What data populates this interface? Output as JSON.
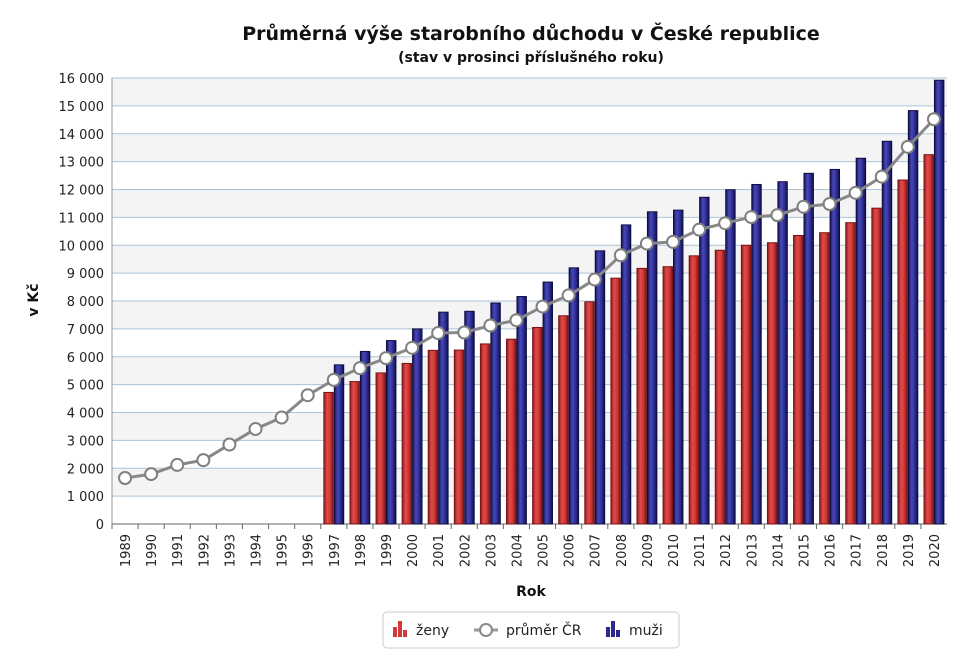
{
  "chart_data": {
    "type": "bar",
    "title": "Průměrná výše starobního důchodu v České republice",
    "subtitle": "(stav v prosinci příslušného roku)",
    "xlabel": "Rok",
    "ylabel": "v Kč",
    "ylim": [
      0,
      16000
    ],
    "yticks": [
      "0",
      "1 000",
      "2 000",
      "3 000",
      "4 000",
      "5 000",
      "6 000",
      "7 000",
      "8 000",
      "9 000",
      "10 000",
      "11 000",
      "12 000",
      "13 000",
      "14 000",
      "15 000",
      "16 000"
    ],
    "grid": true,
    "legend_placement": "bottom-center",
    "categories": [
      "1989",
      "1990",
      "1991",
      "1992",
      "1993",
      "1994",
      "1995",
      "1996",
      "1997",
      "1998",
      "1999",
      "2000",
      "2001",
      "2002",
      "2003",
      "2004",
      "2005",
      "2006",
      "2007",
      "2008",
      "2009",
      "2010",
      "2011",
      "2012",
      "2013",
      "2014",
      "2015",
      "2016",
      "2017",
      "2018",
      "2019",
      "2020"
    ],
    "series": [
      {
        "name": "ženy",
        "kind": "bar",
        "color": "#d23a3a",
        "values": [
          null,
          null,
          null,
          null,
          null,
          null,
          null,
          null,
          4720,
          5110,
          5420,
          5760,
          6230,
          6240,
          6460,
          6630,
          7050,
          7470,
          7970,
          8820,
          9170,
          9230,
          9620,
          9820,
          10000,
          10090,
          10350,
          10450,
          10810,
          11330,
          12340,
          13250
        ]
      },
      {
        "name": "průměr ČR",
        "kind": "line",
        "color": "#888888",
        "values": [
          1650,
          1790,
          2120,
          2290,
          2850,
          3410,
          3820,
          4620,
          5170,
          5590,
          5950,
          6320,
          6850,
          6870,
          7120,
          7310,
          7800,
          8200,
          8770,
          9640,
          10060,
          10120,
          10560,
          10790,
          11010,
          11080,
          11380,
          11480,
          11880,
          12460,
          13530,
          14520
        ]
      },
      {
        "name": "muži",
        "kind": "bar",
        "color": "#2a2a8c",
        "values": [
          null,
          null,
          null,
          null,
          null,
          null,
          null,
          null,
          5710,
          6190,
          6580,
          7000,
          7600,
          7630,
          7930,
          8160,
          8680,
          9190,
          9800,
          10730,
          11200,
          11260,
          11720,
          11990,
          12180,
          12280,
          12580,
          12720,
          13120,
          13730,
          14830,
          15920
        ]
      }
    ]
  }
}
